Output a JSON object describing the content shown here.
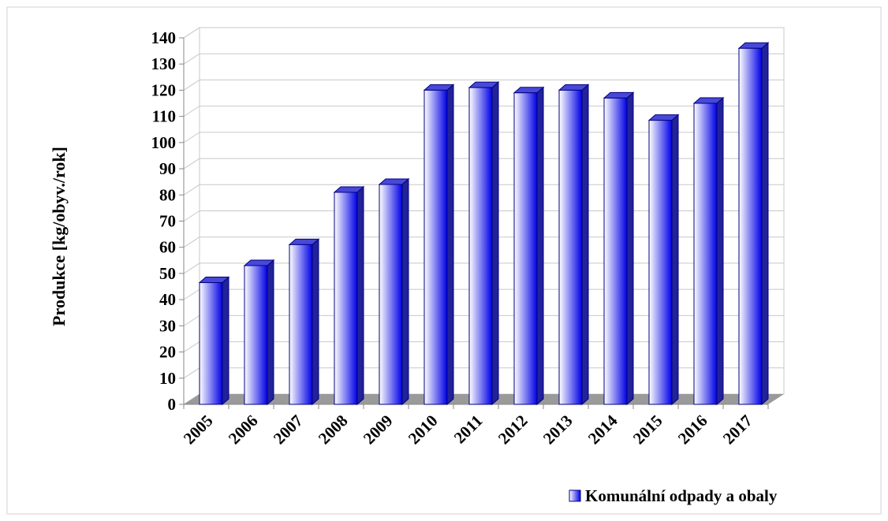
{
  "chart_data": {
    "type": "bar",
    "y_label": "Produkce [kg/obyv./rok]",
    "categories": [
      "2005",
      "2006",
      "2007",
      "2008",
      "2009",
      "2010",
      "2011",
      "2012",
      "2013",
      "2014",
      "2015",
      "2016",
      "2017"
    ],
    "series": [
      {
        "name": "Komunální odpady a obaly",
        "color": "#0000e6",
        "values": [
          46.5,
          53,
          61,
          81,
          84,
          120,
          121,
          119,
          120,
          117,
          108.5,
          115,
          136
        ]
      }
    ],
    "ylim": [
      0,
      140
    ],
    "yticks": [
      0,
      10,
      20,
      30,
      40,
      50,
      60,
      70,
      80,
      90,
      100,
      110,
      120,
      130,
      140
    ],
    "grid": true,
    "legend": "bottom-right"
  }
}
